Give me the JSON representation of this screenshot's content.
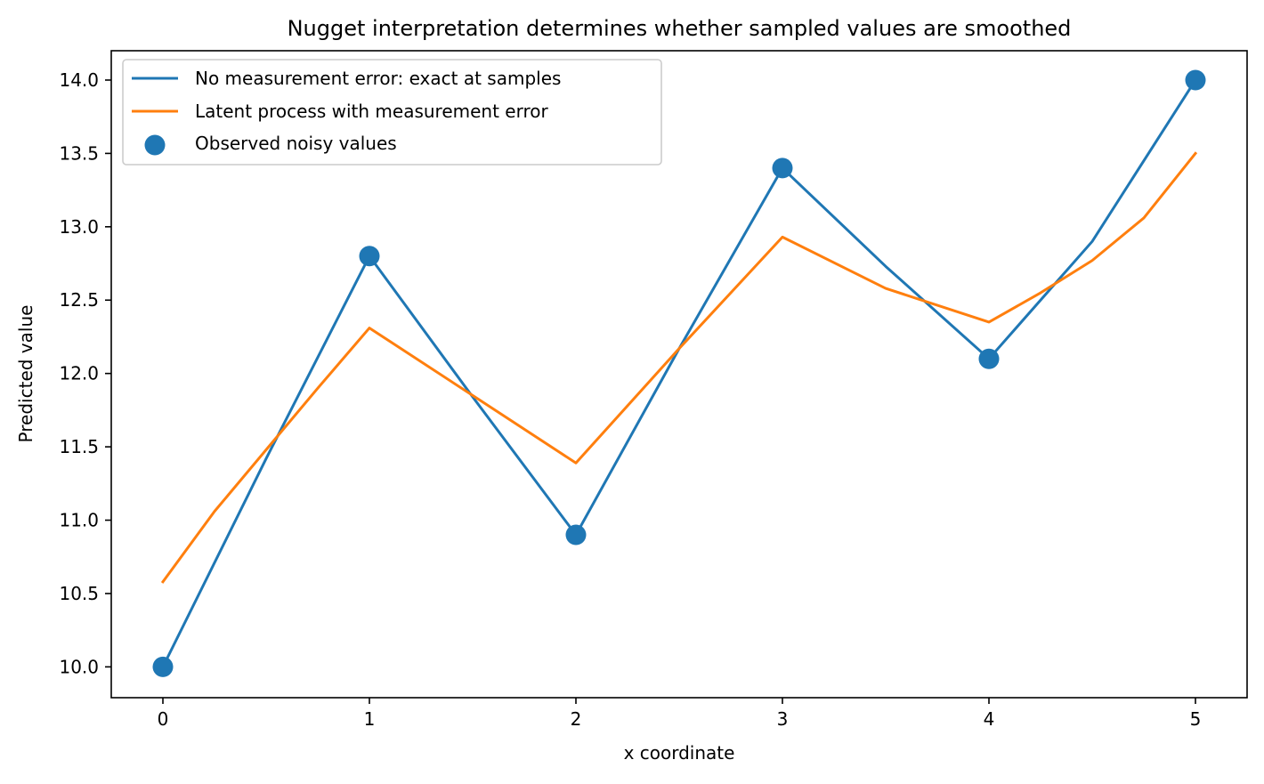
{
  "chart_data": {
    "type": "line",
    "title": "Nugget interpretation determines whether sampled values are smoothed",
    "xlabel": "x coordinate",
    "ylabel": "Predicted value",
    "xlim": [
      -0.25,
      5.25
    ],
    "ylim": [
      9.79,
      14.2
    ],
    "x_ticks": [
      0,
      1,
      2,
      3,
      4,
      5
    ],
    "x_tick_labels": [
      "0",
      "1",
      "2",
      "3",
      "4",
      "5"
    ],
    "y_ticks": [
      10.0,
      10.5,
      11.0,
      11.5,
      12.0,
      12.5,
      13.0,
      13.5,
      14.0
    ],
    "y_tick_labels": [
      "10.0",
      "10.5",
      "11.0",
      "11.5",
      "12.0",
      "12.5",
      "13.0",
      "13.5",
      "14.0"
    ],
    "grid": false,
    "legend_position": "top-left",
    "series": [
      {
        "name": "No measurement error: exact at samples",
        "kind": "line",
        "color": "#1f77b4",
        "x": [
          0,
          0.5,
          1,
          1.5,
          2,
          2.5,
          3,
          3.5,
          4,
          4.5,
          5
        ],
        "y": [
          10.0,
          11.42,
          12.8,
          11.84,
          10.9,
          12.17,
          13.4,
          12.73,
          12.1,
          12.9,
          14.0
        ]
      },
      {
        "name": "Latent process with measurement error",
        "kind": "line",
        "color": "#ff7f0e",
        "x": [
          0,
          0.25,
          0.5,
          0.75,
          1,
          1.5,
          2,
          2.5,
          3,
          3.5,
          4,
          4.25,
          4.5,
          4.75,
          5
        ],
        "y": [
          10.58,
          11.06,
          11.48,
          11.9,
          12.31,
          11.85,
          11.39,
          12.17,
          12.93,
          12.58,
          12.35,
          12.55,
          12.77,
          13.06,
          13.5
        ]
      },
      {
        "name": "Observed noisy values",
        "kind": "scatter",
        "color": "#1f77b4",
        "x": [
          0,
          1,
          2,
          3,
          4,
          5
        ],
        "y": [
          10.0,
          12.8,
          10.9,
          13.4,
          12.1,
          14.0
        ]
      }
    ]
  }
}
